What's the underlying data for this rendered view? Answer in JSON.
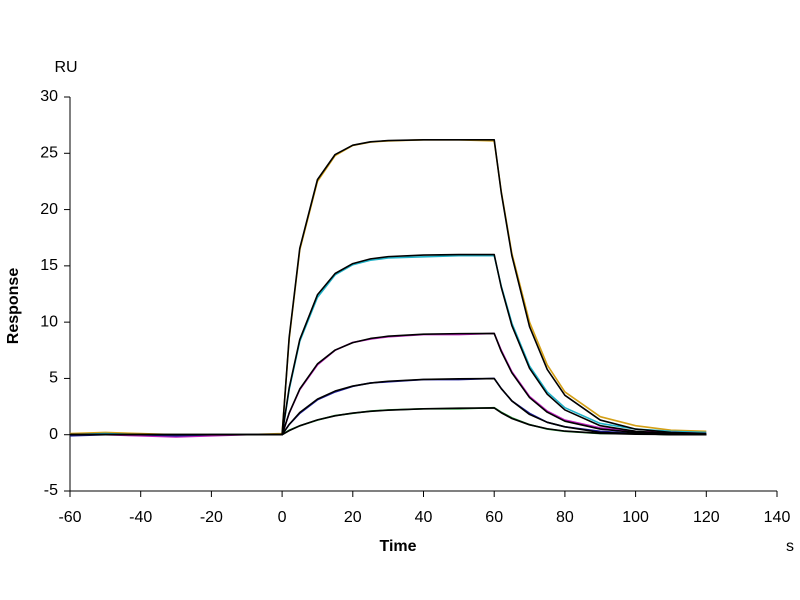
{
  "chart_data": {
    "type": "line",
    "y_unit": "RU",
    "y_label": "Response",
    "x_label": "Time",
    "x_unit": "s",
    "x": [
      -60,
      -50,
      -40,
      -30,
      -20,
      -10,
      0,
      2,
      5,
      10,
      15,
      20,
      25,
      30,
      40,
      50,
      60,
      62,
      65,
      70,
      75,
      80,
      90,
      100,
      110,
      120
    ],
    "xlim": [
      -60,
      140
    ],
    "xticks": [
      -60,
      -40,
      -20,
      0,
      20,
      40,
      60,
      80,
      100,
      120,
      140
    ],
    "ylim": [
      -5,
      30
    ],
    "yticks": [
      -5,
      0,
      5,
      10,
      15,
      20,
      25,
      30
    ],
    "grid": false,
    "series": [
      {
        "color": "#d4a017",
        "values": [
          0.1,
          0.2,
          0.1,
          0.0,
          0.0,
          0.0,
          0.1,
          8.5,
          16.4,
          22.5,
          24.8,
          25.7,
          26.0,
          26.1,
          26.2,
          26.2,
          26.1,
          21.6,
          16.1,
          10.0,
          6.2,
          3.8,
          1.6,
          0.8,
          0.4,
          0.3
        ]
      },
      {
        "color": "#20b2c8",
        "values": [
          0.0,
          0.1,
          0.0,
          -0.1,
          0.0,
          0.0,
          0.0,
          4.0,
          8.3,
          12.2,
          14.2,
          15.1,
          15.5,
          15.7,
          15.8,
          15.9,
          15.9,
          13.2,
          9.9,
          6.1,
          3.8,
          2.4,
          1.0,
          0.5,
          0.3,
          0.2
        ]
      },
      {
        "color": "#c020c0",
        "values": [
          0.0,
          0.0,
          -0.1,
          -0.2,
          -0.1,
          0.0,
          0.0,
          1.9,
          4.0,
          6.2,
          7.5,
          8.2,
          8.5,
          8.7,
          8.9,
          8.9,
          9.0,
          7.5,
          5.6,
          3.4,
          2.1,
          1.3,
          0.6,
          0.3,
          0.2,
          0.1
        ]
      },
      {
        "color": "#1f1fa0",
        "values": [
          -0.1,
          0.0,
          0.0,
          -0.1,
          0.0,
          0.0,
          0.0,
          0.9,
          1.9,
          3.1,
          3.8,
          4.3,
          4.6,
          4.7,
          4.9,
          4.9,
          5.0,
          4.1,
          3.0,
          1.9,
          1.1,
          0.7,
          0.3,
          0.1,
          0.1,
          0.0
        ]
      },
      {
        "color": "#1a8a2a",
        "values": [
          0.0,
          0.0,
          0.0,
          0.0,
          0.0,
          0.0,
          0.0,
          0.4,
          0.8,
          1.3,
          1.7,
          1.9,
          2.1,
          2.2,
          2.3,
          2.3,
          2.4,
          2.0,
          1.5,
          0.9,
          0.5,
          0.3,
          0.1,
          0.1,
          0.0,
          0.0
        ]
      },
      {
        "color": "#000000",
        "values": [
          0,
          0,
          0,
          0,
          0,
          0,
          0,
          8.64,
          16.56,
          22.66,
          24.89,
          25.72,
          26.02,
          26.13,
          26.2,
          26.2,
          26.2,
          21.5,
          15.9,
          9.6,
          5.8,
          3.5,
          1.3,
          0.5,
          0.2,
          0.1
        ]
      },
      {
        "color": "#000000",
        "values": [
          0,
          0,
          0,
          0,
          0,
          0,
          0,
          4.15,
          8.45,
          12.43,
          14.32,
          15.2,
          15.62,
          15.82,
          15.96,
          16,
          16,
          13.1,
          9.7,
          5.9,
          3.6,
          2.2,
          0.8,
          0.3,
          0.1,
          0.0
        ]
      },
      {
        "color": "#000000",
        "values": [
          0,
          0,
          0,
          0,
          0,
          0,
          0,
          1.92,
          4.06,
          6.29,
          7.52,
          8.18,
          8.55,
          8.75,
          8.93,
          8.98,
          9.0,
          7.4,
          5.5,
          3.3,
          2.0,
          1.2,
          0.5,
          0.2,
          0.1,
          0.0
        ]
      },
      {
        "color": "#000000",
        "values": [
          0,
          0,
          0,
          0,
          0,
          0,
          0,
          0.91,
          1.97,
          3.16,
          3.88,
          4.32,
          4.59,
          4.75,
          4.91,
          4.97,
          4.99,
          4.1,
          3.0,
          1.8,
          1.1,
          0.7,
          0.2,
          0.1,
          0.0,
          0.0
        ]
      },
      {
        "color": "#000000",
        "values": [
          0,
          0,
          0,
          0,
          0,
          0,
          0,
          0.36,
          0.79,
          1.32,
          1.68,
          1.92,
          2.08,
          2.18,
          2.3,
          2.36,
          2.38,
          1.95,
          1.44,
          0.88,
          0.53,
          0.32,
          0.12,
          0.04,
          0.02,
          0.01
        ]
      }
    ]
  }
}
